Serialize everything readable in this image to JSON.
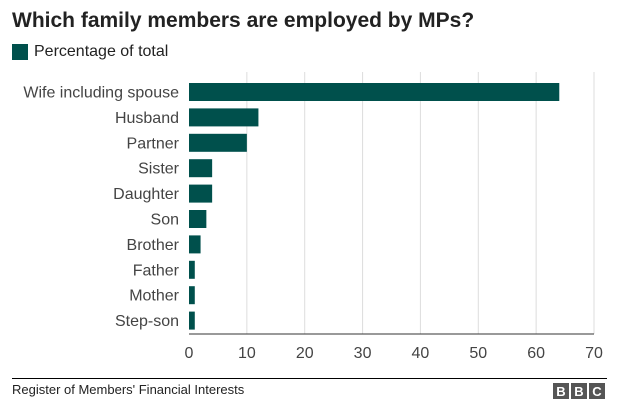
{
  "title": "Which family members are employed by MPs?",
  "legend": {
    "label": "Percentage of total",
    "color": "#00504c"
  },
  "source": "Register of Members' Financial Interests",
  "logo": {
    "letters": [
      "B",
      "B",
      "C"
    ]
  },
  "chart_data": {
    "type": "bar",
    "orientation": "horizontal",
    "title": "Which family members are employed by MPs?",
    "xlabel": "",
    "ylabel": "",
    "xlim": [
      0,
      70
    ],
    "xticks": [
      0,
      10,
      20,
      30,
      40,
      50,
      60,
      70
    ],
    "grid": true,
    "categories": [
      "Wife including spouse",
      "Husband",
      "Partner",
      "Sister",
      "Daughter",
      "Son",
      "Brother",
      "Father",
      "Mother",
      "Step-son"
    ],
    "series": [
      {
        "name": "Percentage of total",
        "values": [
          64,
          12,
          10,
          4,
          4,
          3,
          2,
          1,
          1,
          1
        ],
        "color": "#00504c"
      }
    ]
  }
}
